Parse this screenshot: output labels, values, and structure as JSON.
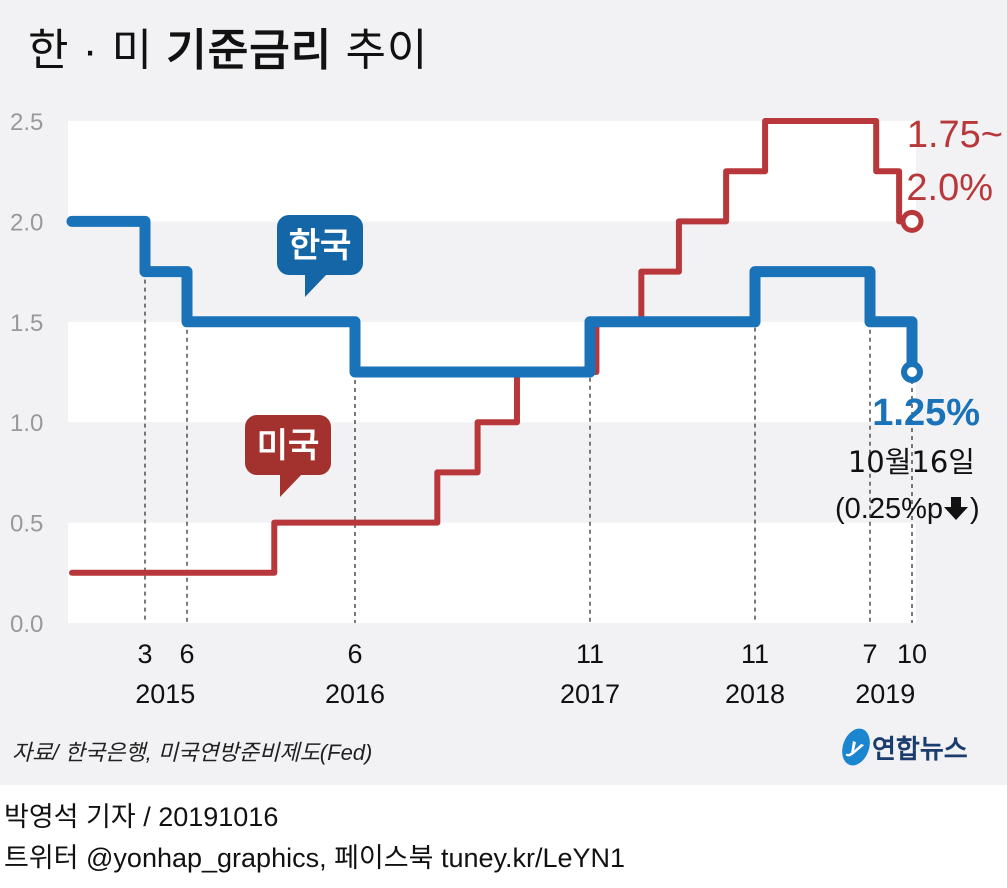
{
  "title": {
    "part1": "한 · 미",
    "bold": "기준금리",
    "part2": "추이"
  },
  "colors": {
    "korea": "#1a72b8",
    "us": "#b8373a",
    "background": "#f2f2f4",
    "band": "#ffffff"
  },
  "chart_data": {
    "type": "line",
    "step": true,
    "ylim": [
      0,
      2.5
    ],
    "yticks": [
      "0.0",
      "0.5",
      "1.0",
      "1.5",
      "2.0",
      "2.5"
    ],
    "x_ticks": [
      {
        "date": "2015-03-12",
        "label": "3"
      },
      {
        "date": "2015-06-11",
        "label": "6"
      },
      {
        "date": "2016-06-09",
        "label": "6"
      },
      {
        "date": "2017-11-30",
        "label": "11"
      },
      {
        "date": "2018-11-30",
        "label": "11"
      },
      {
        "date": "2019-07-18",
        "label": "7"
      },
      {
        "date": "2019-10-16",
        "label": "10"
      }
    ],
    "year_labels": [
      {
        "date": "2015-04-25",
        "label": "2015"
      },
      {
        "date": "2016-06-09",
        "label": "2016"
      },
      {
        "date": "2017-11-30",
        "label": "2017"
      },
      {
        "date": "2018-11-30",
        "label": "2018"
      },
      {
        "date": "2019-08-20",
        "label": "2019"
      }
    ],
    "series": [
      {
        "name": "한국",
        "key": "korea",
        "points": [
          [
            "2014-10-15",
            2.0
          ],
          [
            "2015-03-12",
            1.75
          ],
          [
            "2015-06-11",
            1.5
          ],
          [
            "2016-06-09",
            1.25
          ],
          [
            "2017-11-30",
            1.5
          ],
          [
            "2018-11-30",
            1.75
          ],
          [
            "2019-07-18",
            1.5
          ],
          [
            "2019-10-16",
            1.25
          ]
        ]
      },
      {
        "name": "미국",
        "key": "us",
        "points": [
          [
            "2014-10-15",
            0.25
          ],
          [
            "2015-12-17",
            0.5
          ],
          [
            "2016-12-15",
            0.75
          ],
          [
            "2017-03-16",
            1.0
          ],
          [
            "2017-06-15",
            1.25
          ],
          [
            "2017-12-14",
            1.5
          ],
          [
            "2018-03-22",
            1.75
          ],
          [
            "2018-06-14",
            2.0
          ],
          [
            "2018-09-27",
            2.25
          ],
          [
            "2018-12-20",
            2.5
          ],
          [
            "2019-08-01",
            2.25
          ],
          [
            "2019-09-19",
            2.0
          ],
          [
            "2019-10-16",
            2.0
          ]
        ]
      }
    ],
    "annotations": {
      "us_current": "1.75~",
      "us_current2": "2.0%",
      "korea_current": "1.25%",
      "korea_date": "10월16일",
      "korea_change": "(0.25%p",
      "korea_change_icon": "down-arrow-icon"
    }
  },
  "footer": {
    "source": "자료/ 한국은행, 미국연방준비제도(Fed)",
    "logo": "연합뉴스",
    "byline": "박영석 기자 /  20191016",
    "social": "트위터 @yonhap_graphics, 페이스북 tuney.kr/LeYN1"
  }
}
